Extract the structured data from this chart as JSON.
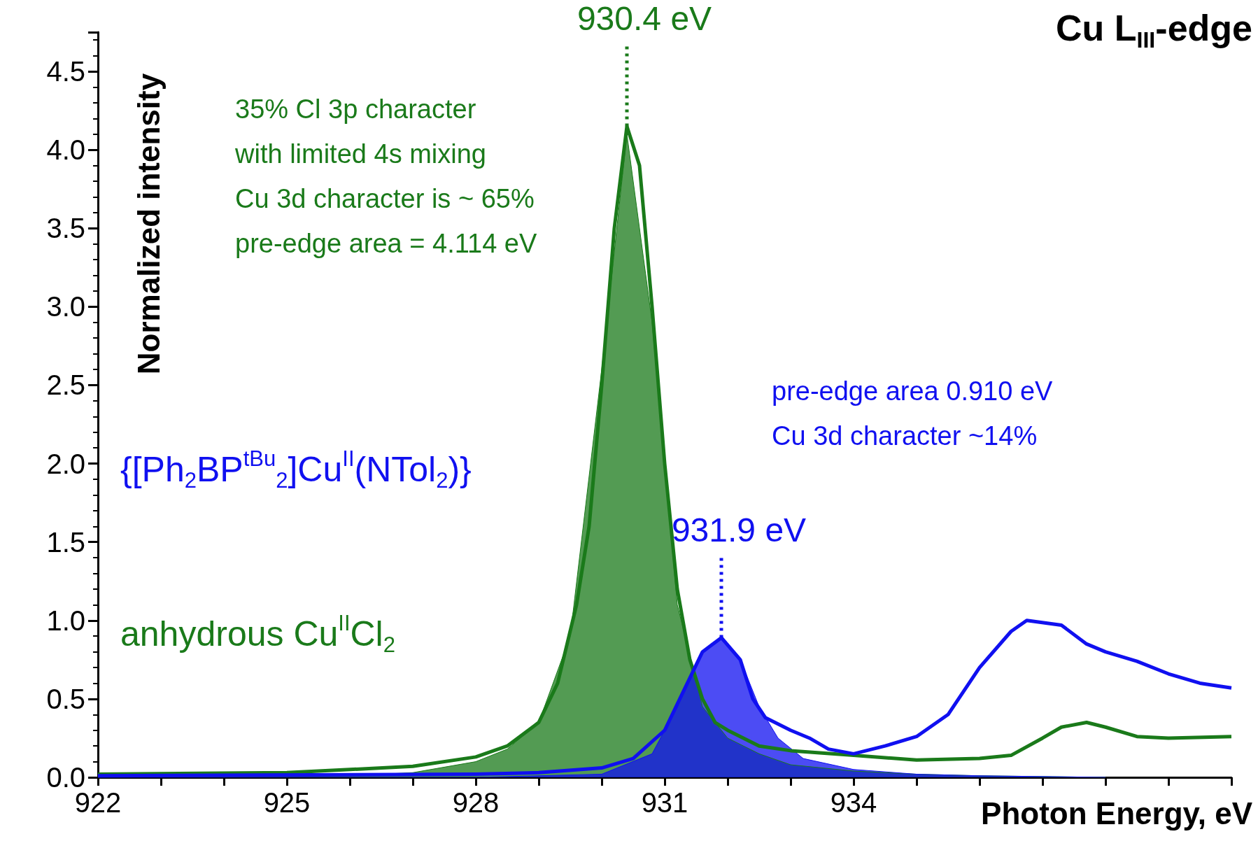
{
  "chart_data": {
    "type": "line",
    "title": "Cu L$_{III}$-edge",
    "xlabel": "Photon Energy, eV",
    "ylabel": "Normalized intensity",
    "marker": "none",
    "xlim": [
      922,
      940
    ],
    "ylim": [
      0,
      4.75
    ],
    "xticks": [
      922,
      {
        "value": 923,
        "label": null
      },
      {
        "value": 924,
        "label": null
      },
      925,
      {
        "value": 926,
        "label": null
      },
      {
        "value": 927,
        "label": null
      },
      928,
      {
        "value": 929,
        "label": null
      },
      {
        "value": 930,
        "label": null
      },
      931,
      {
        "value": 932,
        "label": null
      },
      {
        "value": 933,
        "label": null
      },
      934,
      {
        "value": 935,
        "label": null
      },
      {
        "value": 936,
        "label": null
      },
      {
        "value": 937,
        "label": null
      },
      {
        "value": 938,
        "label": null
      },
      {
        "value": 939,
        "label": null
      },
      {
        "value": 940,
        "label": null
      }
    ],
    "yticks": [
      {
        "value": 0,
        "label": "0.0"
      },
      {
        "value": 0.5,
        "label": "0.5"
      },
      {
        "value": 1,
        "label": "1.0"
      },
      {
        "value": 1.5,
        "label": "1.5"
      },
      {
        "value": 2,
        "label": "2.0"
      },
      {
        "value": 2.5,
        "label": "2.5"
      },
      {
        "value": 3,
        "label": "3.0"
      },
      {
        "value": 3.5,
        "label": "3.5"
      },
      {
        "value": 4,
        "label": "4.0"
      },
      {
        "value": 4.5,
        "label": "4.5"
      }
    ],
    "series": [
      {
        "type": "area",
        "color": "#1a7a1a",
        "x": [
          922,
          926,
          927,
          928,
          928.5,
          929,
          929.5,
          930,
          930.4,
          930.8,
          931.2,
          931.6,
          932,
          932.5,
          933,
          934,
          935,
          936,
          938
        ],
        "values": [
          0,
          0.01,
          0.03,
          0.1,
          0.18,
          0.35,
          0.9,
          2.6,
          4.1,
          2.9,
          1.1,
          0.45,
          0.25,
          0.15,
          0.08,
          0.04,
          0.02,
          0.01,
          0
        ]
      },
      {
        "type": "area",
        "color": "#1010f0",
        "x": [
          922,
          928,
          930,
          930.8,
          931.2,
          931.6,
          931.9,
          932.2,
          932.5,
          932.8,
          933.2,
          934,
          935,
          936,
          938
        ],
        "values": [
          0,
          0,
          0.02,
          0.15,
          0.45,
          0.8,
          0.88,
          0.75,
          0.45,
          0.25,
          0.12,
          0.05,
          0.02,
          0.01,
          0
        ]
      },
      {
        "type": "line",
        "name": "anhydrous Cu$^{II}$Cl$_{2}$",
        "color": "#1a7a1a",
        "x": [
          922,
          925,
          927,
          928,
          928.5,
          929,
          929.3,
          929.6,
          929.8,
          930,
          930.2,
          930.4,
          930.6,
          930.8,
          931,
          931.2,
          931.4,
          931.6,
          931.8,
          932,
          932.5,
          933,
          934,
          935,
          936,
          936.5,
          937,
          937.3,
          937.7,
          938,
          938.5,
          939,
          940
        ],
        "values": [
          0.02,
          0.03,
          0.07,
          0.13,
          0.2,
          0.35,
          0.6,
          1.1,
          1.6,
          2.5,
          3.5,
          4.15,
          3.9,
          3,
          2,
          1.2,
          0.75,
          0.5,
          0.35,
          0.3,
          0.2,
          0.17,
          0.14,
          0.11,
          0.12,
          0.14,
          0.25,
          0.32,
          0.35,
          0.32,
          0.26,
          0.25,
          0.26
        ]
      },
      {
        "type": "line",
        "name": "{[Ph$_{2}$BP$^{tBu}$$_{2}$]Cu$^{II}$(NTol$_{2}$)}",
        "color": "#1010f0",
        "x": [
          922,
          928,
          929,
          930,
          930.5,
          931,
          931.3,
          931.6,
          931.9,
          932.2,
          932.4,
          932.6,
          933,
          933.3,
          933.6,
          934,
          934.5,
          935,
          935.5,
          936,
          936.5,
          936.75,
          937.3,
          937.7,
          938,
          938.5,
          939,
          939.5,
          940
        ],
        "values": [
          0.01,
          0.02,
          0.03,
          0.06,
          0.12,
          0.3,
          0.55,
          0.8,
          0.89,
          0.75,
          0.5,
          0.38,
          0.3,
          0.25,
          0.18,
          0.15,
          0.2,
          0.26,
          0.4,
          0.7,
          0.93,
          1,
          0.97,
          0.85,
          0.8,
          0.74,
          0.66,
          0.6,
          0.57
        ]
      }
    ],
    "annotations": [
      "35% Cl 3p character\nwith limited 4s mixing\nCu 3d character is ~ 65%\npre-edge area = 4.114 eV",
      "pre-edge area 0.910 eV\nCu 3d character ~14%",
      {
        "text": "930.4 eV",
        "x": 930.4,
        "y": 4.15
      },
      {
        "text": "931.9 eV",
        "x": 931.9,
        "y": 0.89
      }
    ]
  }
}
